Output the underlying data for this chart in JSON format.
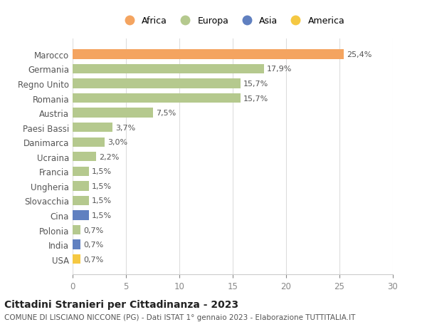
{
  "categories": [
    "Marocco",
    "Germania",
    "Regno Unito",
    "Romania",
    "Austria",
    "Paesi Bassi",
    "Danimarca",
    "Ucraina",
    "Francia",
    "Ungheria",
    "Slovacchia",
    "Cina",
    "Polonia",
    "India",
    "USA"
  ],
  "values": [
    25.4,
    17.9,
    15.7,
    15.7,
    7.5,
    3.7,
    3.0,
    2.2,
    1.5,
    1.5,
    1.5,
    1.5,
    0.7,
    0.7,
    0.7
  ],
  "bar_colors": [
    "#F4A460",
    "#B5C98E",
    "#B5C98E",
    "#B5C98E",
    "#B5C98E",
    "#B5C98E",
    "#B5C98E",
    "#B5C98E",
    "#B5C98E",
    "#B5C98E",
    "#B5C98E",
    "#6080C0",
    "#B5C98E",
    "#6080C0",
    "#F5C842"
  ],
  "labels": [
    "25,4%",
    "17,9%",
    "15,7%",
    "15,7%",
    "7,5%",
    "3,7%",
    "3,0%",
    "2,2%",
    "1,5%",
    "1,5%",
    "1,5%",
    "1,5%",
    "0,7%",
    "0,7%",
    "0,7%"
  ],
  "xlim": [
    0,
    30
  ],
  "xticks": [
    0,
    5,
    10,
    15,
    20,
    25,
    30
  ],
  "title": "Cittadini Stranieri per Cittadinanza - 2023",
  "subtitle": "COMUNE DI LISCIANO NICCONE (PG) - Dati ISTAT 1° gennaio 2023 - Elaborazione TUTTITALIA.IT",
  "legend_order": [
    "Africa",
    "Europa",
    "Asia",
    "America"
  ],
  "legend_colors": [
    "#F4A460",
    "#B5C98E",
    "#6080C0",
    "#F5C842"
  ],
  "background_color": "#ffffff",
  "bar_height": 0.65
}
